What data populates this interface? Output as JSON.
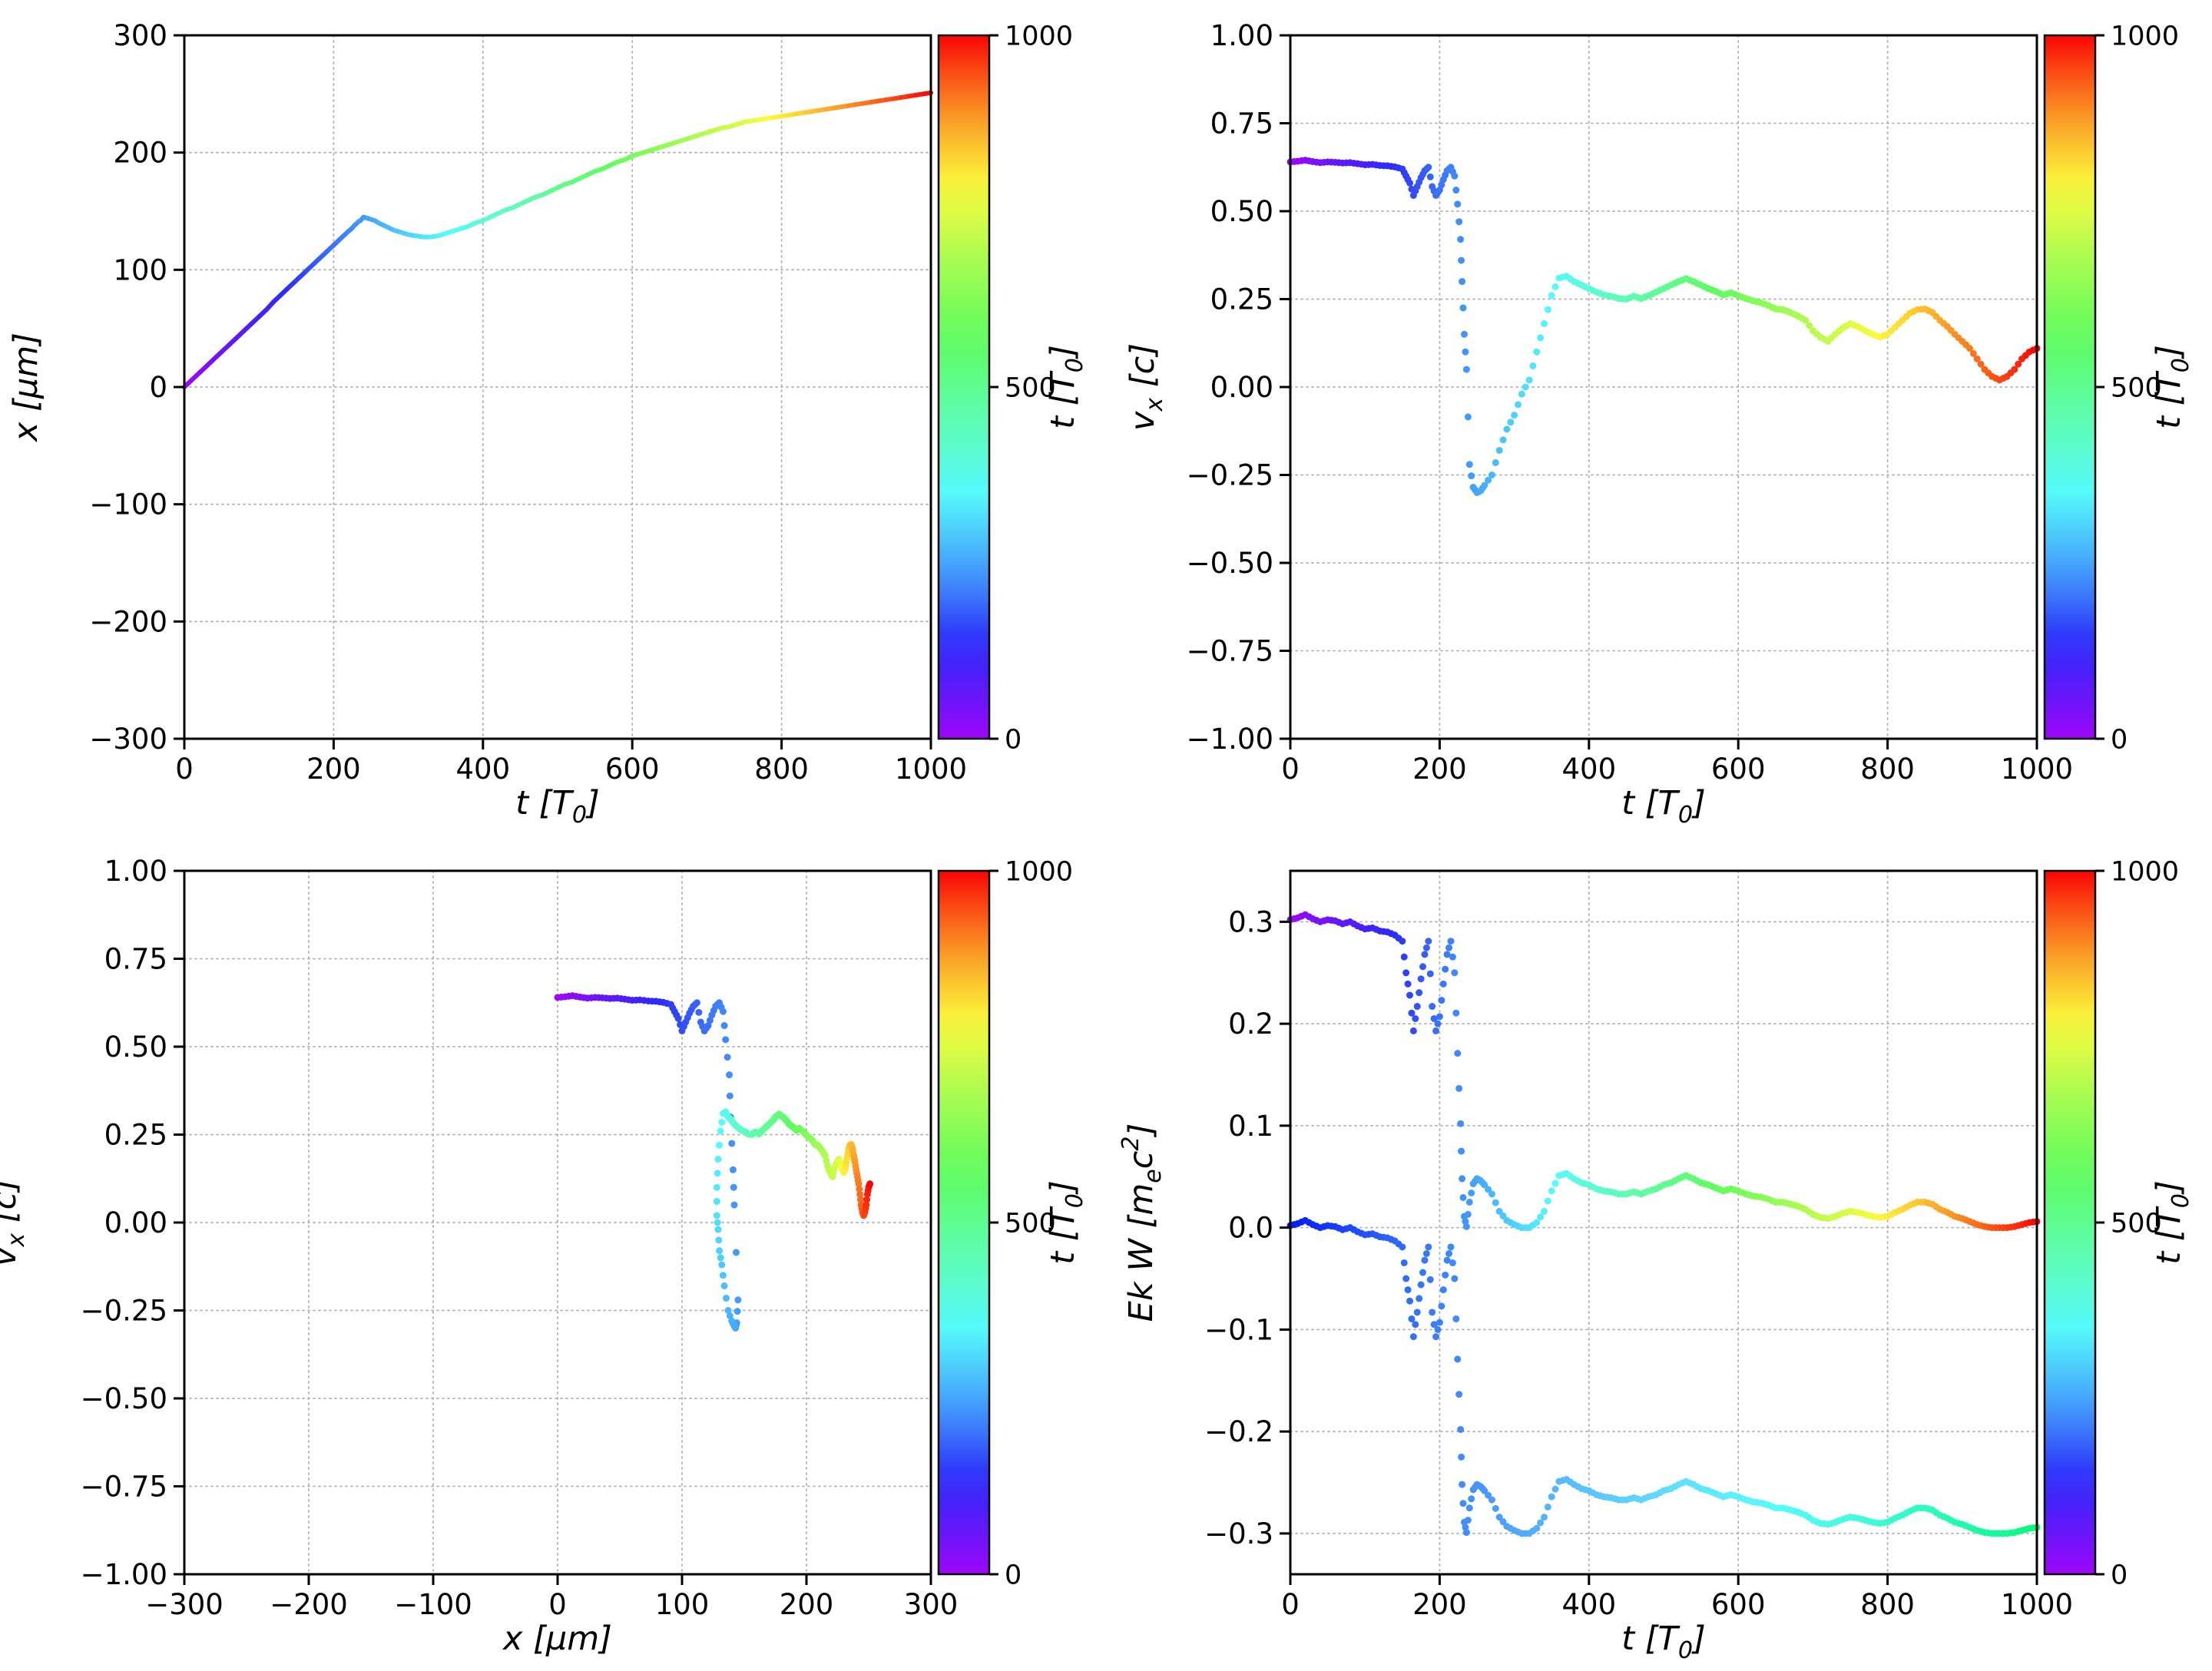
{
  "figure": {
    "background": "#ffffff"
  },
  "colormap": {
    "default_hue_range": [
      278,
      0
    ],
    "saturation": 96
  },
  "colorbar": {
    "label": "t [T_0]",
    "range": [
      0,
      1000
    ],
    "ticks": {
      "values": [
        0,
        500,
        1000
      ],
      "labels": [
        "0",
        "500",
        "1000"
      ]
    }
  },
  "chart_data": {
    "type": "multi-panel",
    "fields": [
      "t",
      "x",
      "vx",
      "ek",
      "w"
    ],
    "track": [
      [
        0,
        0,
        0.64,
        0.302,
        0.002
      ],
      [
        10,
        6,
        0.642,
        0.304,
        0.004
      ],
      [
        20,
        12,
        0.645,
        0.307,
        0.007
      ],
      [
        30,
        18,
        0.641,
        0.303,
        0.003
      ],
      [
        40,
        24,
        0.638,
        0.3,
        0.0
      ],
      [
        50,
        30,
        0.64,
        0.302,
        0.002
      ],
      [
        60,
        36,
        0.639,
        0.301,
        0.001
      ],
      [
        70,
        42,
        0.637,
        0.298,
        -0.002
      ],
      [
        80,
        48,
        0.638,
        0.3,
        0.0
      ],
      [
        90,
        54,
        0.635,
        0.296,
        -0.004
      ],
      [
        100,
        60,
        0.632,
        0.293,
        -0.007
      ],
      [
        110,
        66,
        0.633,
        0.294,
        -0.006
      ],
      [
        120,
        73,
        0.63,
        0.291,
        -0.009
      ],
      [
        130,
        79,
        0.629,
        0.29,
        -0.01
      ],
      [
        140,
        85,
        0.626,
        0.287,
        -0.013
      ],
      [
        150,
        91,
        0.62,
        0.281,
        -0.019
      ],
      [
        155,
        94,
        0.6,
        0.25,
        -0.05
      ],
      [
        160,
        97,
        0.58,
        0.228,
        -0.072
      ],
      [
        165,
        100,
        0.545,
        0.193,
        -0.107
      ],
      [
        170,
        103,
        0.57,
        0.217,
        -0.083
      ],
      [
        175,
        106,
        0.595,
        0.244,
        -0.056
      ],
      [
        180,
        109,
        0.615,
        0.268,
        -0.032
      ],
      [
        185,
        112,
        0.625,
        0.281,
        -0.019
      ],
      [
        190,
        115,
        0.57,
        0.217,
        -0.083
      ],
      [
        195,
        118,
        0.545,
        0.193,
        -0.107
      ],
      [
        200,
        121,
        0.56,
        0.207,
        -0.093
      ],
      [
        205,
        124,
        0.59,
        0.239,
        -0.061
      ],
      [
        210,
        127,
        0.615,
        0.268,
        -0.032
      ],
      [
        215,
        130,
        0.625,
        0.281,
        -0.019
      ],
      [
        220,
        133,
        0.6,
        0.25,
        -0.05
      ],
      [
        224,
        135,
        0.52,
        0.171,
        -0.129
      ],
      [
        228,
        138,
        0.42,
        0.102,
        -0.198
      ],
      [
        230,
        139,
        0.3,
        0.048,
        -0.252
      ],
      [
        233,
        141,
        0.15,
        0.011,
        -0.289
      ],
      [
        236,
        142,
        0.05,
        0.001,
        -0.299
      ],
      [
        240,
        145,
        -0.22,
        0.025,
        -0.275
      ],
      [
        245,
        144,
        -0.285,
        0.043,
        -0.257
      ],
      [
        250,
        143,
        -0.3,
        0.048,
        -0.252
      ],
      [
        255,
        142,
        -0.295,
        0.046,
        -0.254
      ],
      [
        260,
        140,
        -0.28,
        0.042,
        -0.258
      ],
      [
        270,
        137,
        -0.25,
        0.033,
        -0.267
      ],
      [
        280,
        134,
        -0.18,
        0.016,
        -0.284
      ],
      [
        290,
        132,
        -0.12,
        0.007,
        -0.293
      ],
      [
        300,
        130,
        -0.08,
        0.003,
        -0.297
      ],
      [
        310,
        129,
        -0.02,
        0.0,
        -0.3
      ],
      [
        320,
        128,
        0.02,
        0.0,
        -0.3
      ],
      [
        330,
        128,
        0.1,
        0.005,
        -0.295
      ],
      [
        340,
        129,
        0.18,
        0.016,
        -0.284
      ],
      [
        350,
        131,
        0.26,
        0.036,
        -0.264
      ],
      [
        360,
        133,
        0.31,
        0.051,
        -0.249
      ],
      [
        370,
        135,
        0.315,
        0.053,
        -0.247
      ],
      [
        380,
        137,
        0.3,
        0.048,
        -0.252
      ],
      [
        390,
        140,
        0.29,
        0.044,
        -0.256
      ],
      [
        400,
        142,
        0.28,
        0.042,
        -0.258
      ],
      [
        410,
        145,
        0.27,
        0.038,
        -0.262
      ],
      [
        420,
        148,
        0.262,
        0.036,
        -0.264
      ],
      [
        430,
        151,
        0.258,
        0.035,
        -0.265
      ],
      [
        440,
        153,
        0.252,
        0.033,
        -0.267
      ],
      [
        450,
        156,
        0.25,
        0.033,
        -0.267
      ],
      [
        460,
        159,
        0.258,
        0.035,
        -0.265
      ],
      [
        470,
        162,
        0.252,
        0.033,
        -0.267
      ],
      [
        480,
        164,
        0.26,
        0.036,
        -0.264
      ],
      [
        490,
        167,
        0.27,
        0.038,
        -0.262
      ],
      [
        500,
        170,
        0.28,
        0.042,
        -0.258
      ],
      [
        510,
        173,
        0.29,
        0.044,
        -0.256
      ],
      [
        520,
        175,
        0.3,
        0.048,
        -0.252
      ],
      [
        530,
        178,
        0.308,
        0.051,
        -0.249
      ],
      [
        540,
        181,
        0.3,
        0.048,
        -0.252
      ],
      [
        550,
        184,
        0.29,
        0.044,
        -0.256
      ],
      [
        560,
        186,
        0.28,
        0.042,
        -0.258
      ],
      [
        570,
        189,
        0.272,
        0.039,
        -0.261
      ],
      [
        580,
        192,
        0.262,
        0.036,
        -0.264
      ],
      [
        590,
        194,
        0.268,
        0.038,
        -0.262
      ],
      [
        600,
        197,
        0.26,
        0.036,
        -0.264
      ],
      [
        610,
        199,
        0.252,
        0.033,
        -0.267
      ],
      [
        620,
        201,
        0.245,
        0.031,
        -0.269
      ],
      [
        630,
        203,
        0.24,
        0.03,
        -0.27
      ],
      [
        640,
        205,
        0.232,
        0.028,
        -0.272
      ],
      [
        650,
        207,
        0.222,
        0.025,
        -0.275
      ],
      [
        660,
        209,
        0.22,
        0.025,
        -0.275
      ],
      [
        670,
        211,
        0.212,
        0.023,
        -0.277
      ],
      [
        680,
        213,
        0.202,
        0.021,
        -0.279
      ],
      [
        690,
        215,
        0.19,
        0.018,
        -0.282
      ],
      [
        700,
        217,
        0.16,
        0.013,
        -0.287
      ],
      [
        710,
        219,
        0.142,
        0.01,
        -0.29
      ],
      [
        720,
        221,
        0.13,
        0.009,
        -0.291
      ],
      [
        730,
        222,
        0.15,
        0.011,
        -0.289
      ],
      [
        740,
        224,
        0.168,
        0.014,
        -0.286
      ],
      [
        750,
        226,
        0.18,
        0.016,
        -0.284
      ],
      [
        760,
        227,
        0.172,
        0.015,
        -0.285
      ],
      [
        770,
        228,
        0.16,
        0.013,
        -0.287
      ],
      [
        780,
        229,
        0.15,
        0.011,
        -0.289
      ],
      [
        790,
        230,
        0.142,
        0.01,
        -0.29
      ],
      [
        800,
        231,
        0.15,
        0.011,
        -0.289
      ],
      [
        810,
        232,
        0.17,
        0.015,
        -0.285
      ],
      [
        820,
        233,
        0.19,
        0.018,
        -0.282
      ],
      [
        830,
        234,
        0.21,
        0.022,
        -0.278
      ],
      [
        840,
        235,
        0.22,
        0.025,
        -0.275
      ],
      [
        850,
        236,
        0.222,
        0.025,
        -0.275
      ],
      [
        860,
        237,
        0.212,
        0.023,
        -0.277
      ],
      [
        870,
        238,
        0.19,
        0.018,
        -0.282
      ],
      [
        880,
        239,
        0.172,
        0.015,
        -0.285
      ],
      [
        890,
        240,
        0.15,
        0.011,
        -0.289
      ],
      [
        900,
        241,
        0.13,
        0.009,
        -0.291
      ],
      [
        910,
        242,
        0.11,
        0.006,
        -0.294
      ],
      [
        920,
        243,
        0.08,
        0.003,
        -0.297
      ],
      [
        930,
        244,
        0.05,
        0.001,
        -0.299
      ],
      [
        940,
        245,
        0.03,
        0.0,
        -0.3
      ],
      [
        950,
        246,
        0.02,
        0.0,
        -0.3
      ],
      [
        960,
        247,
        0.03,
        0.0,
        -0.3
      ],
      [
        970,
        248,
        0.05,
        0.001,
        -0.299
      ],
      [
        980,
        249,
        0.08,
        0.003,
        -0.297
      ],
      [
        990,
        250,
        0.1,
        0.005,
        -0.295
      ],
      [
        1000,
        251,
        0.11,
        0.006,
        -0.294
      ]
    ],
    "panels": [
      {
        "id": "x-vs-t",
        "type": "line",
        "series": [
          {
            "x": "t",
            "y": "x"
          }
        ],
        "xlim": [
          0,
          1000
        ],
        "ylim": [
          -300,
          300
        ],
        "xticks": {
          "values": [
            0,
            200,
            400,
            600,
            800,
            1000
          ],
          "labels": [
            "0",
            "200",
            "400",
            "600",
            "800",
            "1000"
          ]
        },
        "yticks": {
          "values": [
            -300,
            -200,
            -100,
            0,
            100,
            200,
            300
          ],
          "labels": [
            "−300",
            "−200",
            "−100",
            "0",
            "100",
            "200",
            "300"
          ]
        },
        "xlabel": "t  [T_0]",
        "ylabel": "x  [μm]",
        "grid": true
      },
      {
        "id": "vx-vs-t",
        "type": "scatter",
        "series": [
          {
            "x": "t",
            "y": "vx"
          }
        ],
        "xlim": [
          0,
          1000
        ],
        "ylim": [
          -1,
          1
        ],
        "xticks": {
          "values": [
            0,
            200,
            400,
            600,
            800,
            1000
          ],
          "labels": [
            "0",
            "200",
            "400",
            "600",
            "800",
            "1000"
          ]
        },
        "yticks": {
          "values": [
            -1,
            -0.75,
            -0.5,
            -0.25,
            0,
            0.25,
            0.5,
            0.75,
            1
          ],
          "labels": [
            "−1.00",
            "−0.75",
            "−0.50",
            "−0.25",
            "0.00",
            "0.25",
            "0.50",
            "0.75",
            "1.00"
          ]
        },
        "xlabel": "t [T_0]",
        "ylabel": "v_x [c]",
        "grid": true
      },
      {
        "id": "vx-vs-x",
        "type": "scatter",
        "series": [
          {
            "x": "x",
            "y": "vx"
          }
        ],
        "xlim": [
          -300,
          300
        ],
        "ylim": [
          -1,
          1
        ],
        "xticks": {
          "values": [
            -300,
            -200,
            -100,
            0,
            100,
            200,
            300
          ],
          "labels": [
            "−300",
            "−200",
            "−100",
            "0",
            "100",
            "200",
            "300"
          ]
        },
        "yticks": {
          "values": [
            -1,
            -0.75,
            -0.5,
            -0.25,
            0,
            0.25,
            0.5,
            0.75,
            1
          ],
          "labels": [
            "−1.00",
            "−0.75",
            "−0.50",
            "−0.25",
            "0.00",
            "0.25",
            "0.50",
            "0.75",
            "1.00"
          ]
        },
        "xlabel": "x [μm]",
        "ylabel": "v_x [c]",
        "grid": true
      },
      {
        "id": "energy-vs-t",
        "type": "scatter",
        "series": [
          {
            "x": "t",
            "y": "ek"
          },
          {
            "x": "t",
            "y": "w",
            "hue_range": [
              235,
              150
            ]
          }
        ],
        "xlim": [
          0,
          1000
        ],
        "ylim": [
          -0.34,
          0.35
        ],
        "xticks": {
          "values": [
            0,
            200,
            400,
            600,
            800,
            1000
          ],
          "labels": [
            "0",
            "200",
            "400",
            "600",
            "800",
            "1000"
          ]
        },
        "yticks": {
          "values": [
            -0.3,
            -0.2,
            -0.1,
            0,
            0.1,
            0.2,
            0.3
          ],
          "labels": [
            "−0.3",
            "−0.2",
            "−0.1",
            "0.0",
            "0.1",
            "0.2",
            "0.3"
          ]
        },
        "xlabel": "t [T_0]",
        "ylabel": "Ek W [m_ec^2]",
        "grid": true
      }
    ]
  }
}
